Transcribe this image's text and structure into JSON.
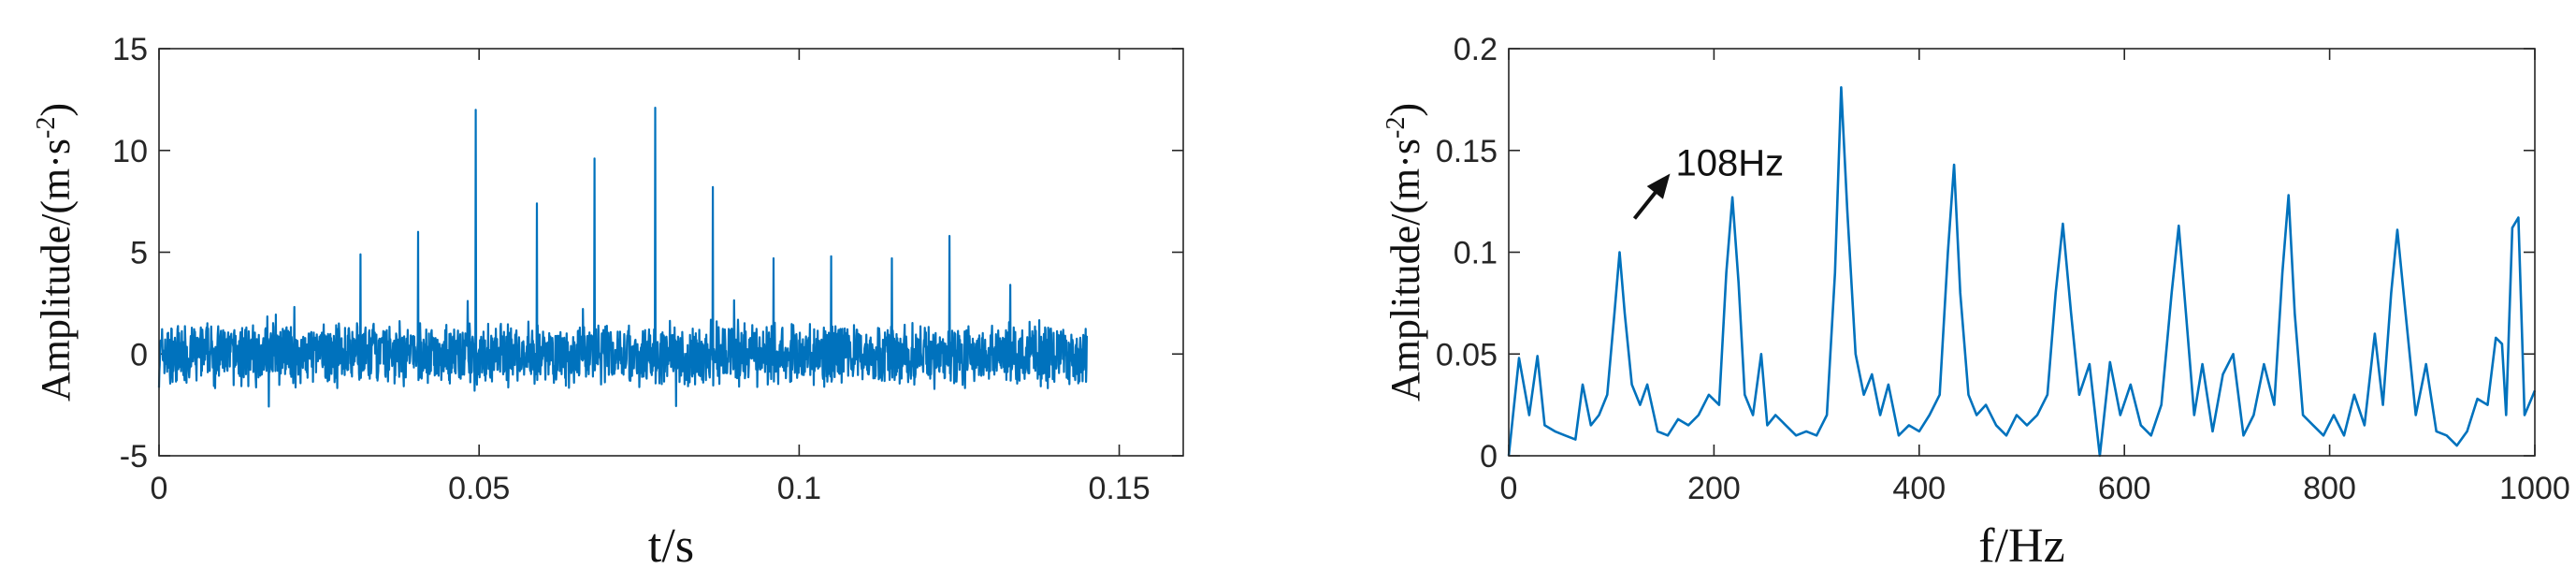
{
  "chart_data": [
    {
      "type": "line",
      "xlabel": "t/s",
      "ylabel_main": "Amplitude/(m·s",
      "ylabel_sup": "-2",
      "ylabel_tail": ")",
      "xlim": [
        0,
        0.16
      ],
      "ylim": [
        -5,
        15
      ],
      "xticks": [
        0,
        0.05,
        0.1,
        0.15
      ],
      "xtick_labels": [
        "0",
        "0.05",
        "0.1",
        "0.15"
      ],
      "yticks": [
        -5,
        0,
        5,
        10,
        15
      ],
      "ytick_labels": [
        "-5",
        "0",
        "5",
        "10",
        "15"
      ],
      "line_color": "#0072BD",
      "signal_end": 0.145,
      "noise_amplitude": 1.5,
      "impulses": [
        {
          "x": 0.0315,
          "y": 4.9
        },
        {
          "x": 0.0405,
          "y": 6.0
        },
        {
          "x": 0.0495,
          "y": 12.0
        },
        {
          "x": 0.059,
          "y": 7.4
        },
        {
          "x": 0.068,
          "y": 9.6
        },
        {
          "x": 0.0775,
          "y": 12.1
        },
        {
          "x": 0.0865,
          "y": 8.2
        },
        {
          "x": 0.096,
          "y": 4.7
        },
        {
          "x": 0.105,
          "y": 4.8
        },
        {
          "x": 0.1145,
          "y": 4.7
        },
        {
          "x": 0.1235,
          "y": 5.8
        },
        {
          "x": 0.133,
          "y": 3.4
        }
      ]
    },
    {
      "type": "line",
      "xlabel": "f/Hz",
      "ylabel_main": "Amplitude/(m·s",
      "ylabel_sup": "-2",
      "ylabel_tail": ")",
      "xlim": [
        0,
        1000
      ],
      "ylim": [
        0,
        0.2
      ],
      "xticks": [
        0,
        200,
        400,
        600,
        800,
        1000
      ],
      "xtick_labels": [
        "0",
        "200",
        "400",
        "600",
        "800",
        "1000"
      ],
      "yticks": [
        0,
        0.05,
        0.1,
        0.15,
        0.2
      ],
      "ytick_labels": [
        "0",
        "0.05",
        "0.1",
        "0.15",
        "0.2"
      ],
      "line_color": "#0072BD",
      "annotation": {
        "text": "108Hz",
        "x": 108,
        "y": 0.1
      },
      "x": [
        0,
        10,
        20,
        28,
        35,
        45,
        55,
        65,
        72,
        80,
        88,
        96,
        103,
        108,
        113,
        120,
        128,
        135,
        145,
        155,
        165,
        175,
        185,
        195,
        205,
        212,
        218,
        224,
        230,
        238,
        246,
        252,
        260,
        270,
        280,
        290,
        300,
        310,
        318,
        324,
        330,
        338,
        346,
        354,
        362,
        370,
        380,
        390,
        400,
        410,
        420,
        428,
        434,
        440,
        448,
        456,
        465,
        475,
        485,
        495,
        505,
        515,
        525,
        533,
        540,
        548,
        556,
        566,
        576,
        586,
        596,
        606,
        616,
        626,
        636,
        646,
        653,
        660,
        668,
        676,
        686,
        696,
        706,
        716,
        726,
        736,
        746,
        754,
        760,
        766,
        774,
        784,
        794,
        804,
        814,
        824,
        834,
        844,
        852,
        860,
        866,
        874,
        884,
        894,
        904,
        914,
        924,
        934,
        944,
        954,
        962,
        968,
        972,
        978,
        984,
        990,
        1000
      ],
      "y": [
        0.0,
        0.048,
        0.02,
        0.049,
        0.015,
        0.012,
        0.01,
        0.008,
        0.035,
        0.015,
        0.02,
        0.03,
        0.07,
        0.1,
        0.07,
        0.035,
        0.025,
        0.035,
        0.012,
        0.01,
        0.018,
        0.015,
        0.02,
        0.03,
        0.025,
        0.09,
        0.127,
        0.085,
        0.03,
        0.02,
        0.05,
        0.015,
        0.02,
        0.015,
        0.01,
        0.012,
        0.01,
        0.02,
        0.09,
        0.181,
        0.12,
        0.05,
        0.03,
        0.04,
        0.02,
        0.035,
        0.01,
        0.015,
        0.012,
        0.02,
        0.03,
        0.1,
        0.143,
        0.08,
        0.03,
        0.02,
        0.025,
        0.015,
        0.01,
        0.02,
        0.015,
        0.02,
        0.03,
        0.08,
        0.114,
        0.07,
        0.03,
        0.045,
        0.0,
        0.046,
        0.02,
        0.035,
        0.015,
        0.01,
        0.025,
        0.08,
        0.113,
        0.07,
        0.02,
        0.045,
        0.012,
        0.04,
        0.05,
        0.01,
        0.02,
        0.045,
        0.025,
        0.09,
        0.128,
        0.07,
        0.02,
        0.015,
        0.01,
        0.02,
        0.01,
        0.03,
        0.015,
        0.06,
        0.025,
        0.08,
        0.111,
        0.07,
        0.02,
        0.045,
        0.012,
        0.01,
        0.005,
        0.012,
        0.028,
        0.025,
        0.058,
        0.055,
        0.02,
        0.112,
        0.117,
        0.02,
        0.032
      ]
    }
  ]
}
